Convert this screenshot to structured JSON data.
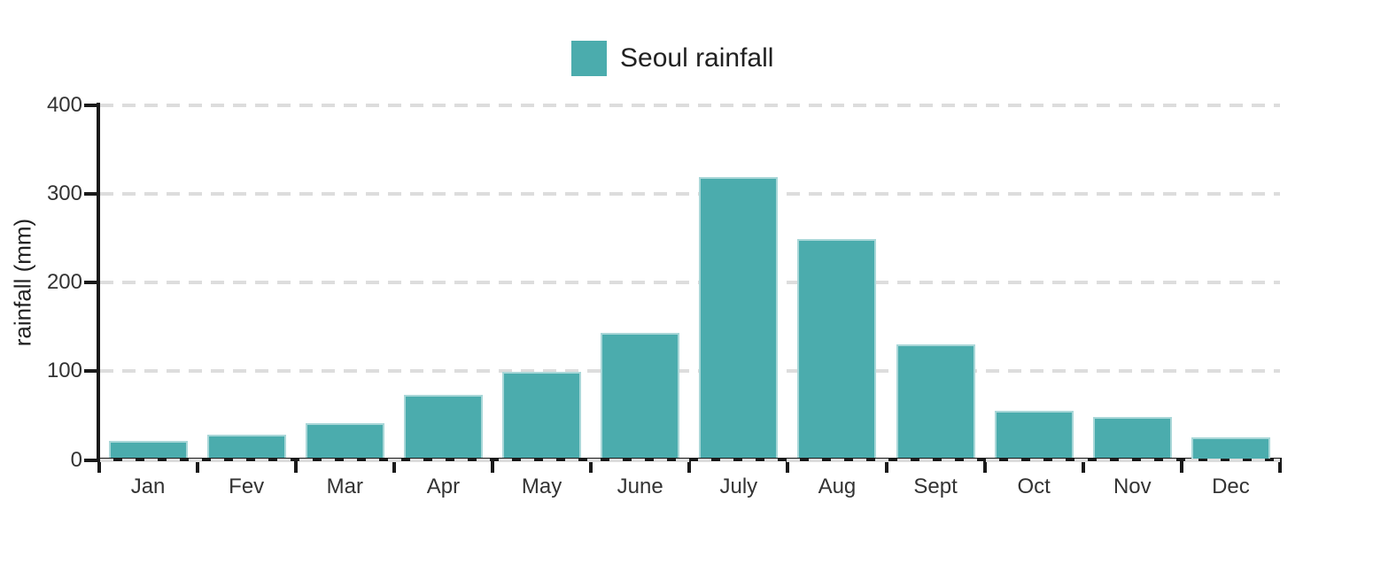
{
  "chart_data": {
    "type": "bar",
    "title": "Seoul rainfall",
    "legend": {
      "label": "Seoul rainfall",
      "position": "top-center"
    },
    "categories": [
      "Jan",
      "Fev",
      "Mar",
      "Apr",
      "May",
      "June",
      "July",
      "Aug",
      "Sept",
      "Oct",
      "Nov",
      "Dec"
    ],
    "values": [
      21,
      28,
      41,
      73,
      99,
      143,
      319,
      249,
      130,
      55,
      48,
      25
    ],
    "series": [
      {
        "name": "Seoul rainfall",
        "values": [
          21,
          28,
          41,
          73,
          99,
          143,
          319,
          249,
          130,
          55,
          48,
          25
        ]
      }
    ],
    "xlabel": "",
    "ylabel": "rainfall (mm)",
    "ylim": [
      0,
      400
    ],
    "yticks": [
      0,
      100,
      200,
      300,
      400
    ],
    "grid": {
      "horizontal": true,
      "style": "dashed"
    },
    "colors": {
      "bar_fill": "#4BACAD",
      "bar_edge": "#A9D7D8",
      "gridline": "#DDDDDD",
      "axis": "#1A1A1A",
      "text": "#333333",
      "text_strong": "#212121",
      "background": "#FFFFFF"
    }
  }
}
